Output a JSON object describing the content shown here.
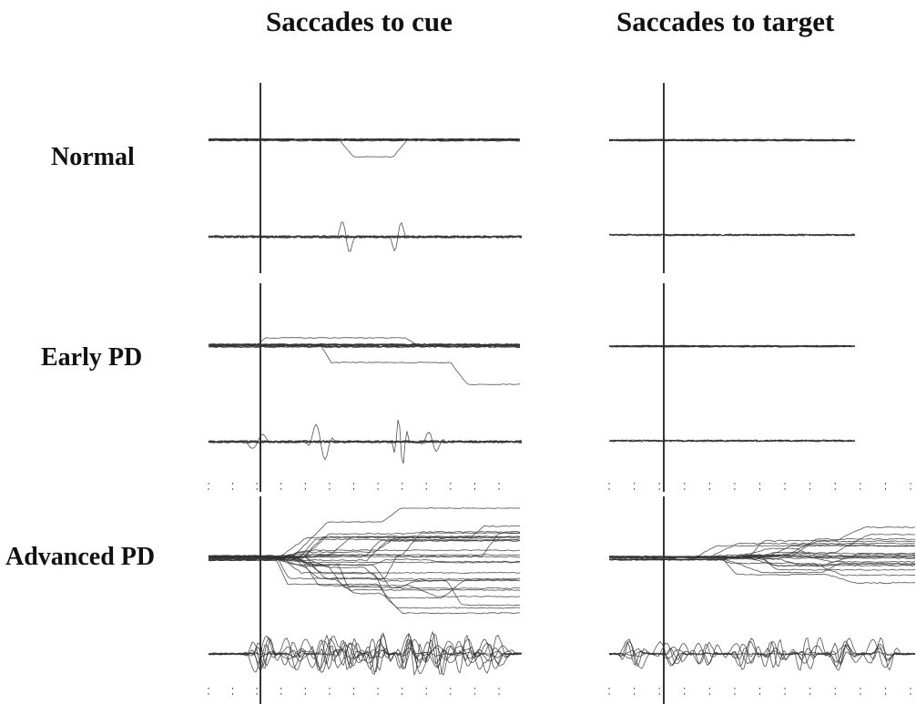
{
  "columns": {
    "cue": "Saccades to cue",
    "target": "Saccades to target"
  },
  "rows": {
    "normal": "Normal",
    "early": "Early PD",
    "advanced": "Advanced PD"
  },
  "colors": {
    "trace": "#333333",
    "axis": "#000000"
  }
}
